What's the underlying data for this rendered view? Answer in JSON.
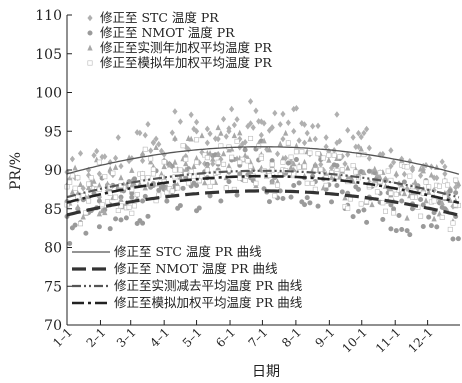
{
  "chart_data": {
    "type": "scatter",
    "title": "",
    "xlabel": "日期",
    "ylabel": "PR/%",
    "ylim": [
      70,
      110
    ],
    "yticks": [
      70,
      75,
      80,
      85,
      90,
      95,
      100,
      105,
      110
    ],
    "xlim": [
      1,
      365
    ],
    "x_ticks": [
      {
        "label": "1–1",
        "day": 1
      },
      {
        "label": "2–1",
        "day": 32
      },
      {
        "label": "3–1",
        "day": 60
      },
      {
        "label": "4–1",
        "day": 91
      },
      {
        "label": "5–1",
        "day": 121
      },
      {
        "label": "6–1",
        "day": 152
      },
      {
        "label": "7–1",
        "day": 182
      },
      {
        "label": "8–1",
        "day": 213
      },
      {
        "label": "9–1",
        "day": 244
      },
      {
        "label": "10–1",
        "day": 274
      },
      {
        "label": "11–1",
        "day": 305
      },
      {
        "label": "12–1",
        "day": 335
      }
    ],
    "legend_points_position": "top-left",
    "legend_lines_position": "bottom-left",
    "series": [
      {
        "name": "修正至 STC 温度 PR",
        "marker": "diamond",
        "color": "#b0b0b0",
        "points_every_10_days": [
          [
            1,
            88
          ],
          [
            11,
            89
          ],
          [
            21,
            90
          ],
          [
            31,
            89.5
          ],
          [
            41,
            91
          ],
          [
            51,
            90.5
          ],
          [
            61,
            91.5
          ],
          [
            71,
            92
          ],
          [
            81,
            93.5
          ],
          [
            91,
            92
          ],
          [
            101,
            94
          ],
          [
            111,
            93
          ],
          [
            121,
            95
          ],
          [
            131,
            93.5
          ],
          [
            141,
            94
          ],
          [
            151,
            95
          ],
          [
            161,
            94
          ],
          [
            171,
            96
          ],
          [
            181,
            94.5
          ],
          [
            191,
            95.5
          ],
          [
            201,
            94
          ],
          [
            211,
            95
          ],
          [
            221,
            93.5
          ],
          [
            231,
            94
          ],
          [
            241,
            93
          ],
          [
            251,
            93.5
          ],
          [
            261,
            92
          ],
          [
            271,
            93
          ],
          [
            281,
            91.5
          ],
          [
            291,
            92
          ],
          [
            301,
            90.5
          ],
          [
            311,
            91
          ],
          [
            321,
            90
          ],
          [
            331,
            90.5
          ],
          [
            341,
            89
          ],
          [
            351,
            89.5
          ],
          [
            361,
            88.5
          ]
        ]
      },
      {
        "name": "修正至 NMOT 温度 PR",
        "marker": "circle",
        "color": "#9a9a9a",
        "points_every_10_days": [
          [
            1,
            84
          ],
          [
            11,
            85
          ],
          [
            21,
            84.5
          ],
          [
            31,
            86
          ],
          [
            41,
            85.5
          ],
          [
            51,
            86.5
          ],
          [
            61,
            87
          ],
          [
            71,
            86
          ],
          [
            81,
            88
          ],
          [
            91,
            87.5
          ],
          [
            101,
            88
          ],
          [
            111,
            89
          ],
          [
            121,
            88
          ],
          [
            131,
            89
          ],
          [
            141,
            90
          ],
          [
            151,
            88.5
          ],
          [
            161,
            89.5
          ],
          [
            171,
            89
          ],
          [
            181,
            90
          ],
          [
            191,
            88.5
          ],
          [
            201,
            89.5
          ],
          [
            211,
            88
          ],
          [
            221,
            89
          ],
          [
            231,
            88.5
          ],
          [
            241,
            87.5
          ],
          [
            251,
            88
          ],
          [
            261,
            87
          ],
          [
            271,
            87.5
          ],
          [
            281,
            86.5
          ],
          [
            291,
            87
          ],
          [
            301,
            85.5
          ],
          [
            311,
            86
          ],
          [
            321,
            85
          ],
          [
            331,
            85.5
          ],
          [
            341,
            84.5
          ],
          [
            351,
            85
          ],
          [
            361,
            84
          ]
        ]
      },
      {
        "name": "修正至实测年加权平均温度 PR",
        "marker": "triangle",
        "color": "#a8a8a8",
        "points_every_10_days": [
          [
            1,
            86
          ],
          [
            11,
            87
          ],
          [
            21,
            86.5
          ],
          [
            31,
            88
          ],
          [
            41,
            87.5
          ],
          [
            51,
            89
          ],
          [
            61,
            88
          ],
          [
            71,
            89.5
          ],
          [
            81,
            90
          ],
          [
            91,
            89
          ],
          [
            101,
            91
          ],
          [
            111,
            90
          ],
          [
            121,
            91.5
          ],
          [
            131,
            90.5
          ],
          [
            141,
            92
          ],
          [
            151,
            90.5
          ],
          [
            161,
            91.5
          ],
          [
            171,
            91
          ],
          [
            181,
            92
          ],
          [
            191,
            90.5
          ],
          [
            201,
            91.5
          ],
          [
            211,
            90
          ],
          [
            221,
            91
          ],
          [
            231,
            90.5
          ],
          [
            241,
            89.5
          ],
          [
            251,
            90
          ],
          [
            261,
            89
          ],
          [
            271,
            89.5
          ],
          [
            281,
            88.5
          ],
          [
            291,
            89
          ],
          [
            301,
            87.5
          ],
          [
            311,
            88
          ],
          [
            321,
            87
          ],
          [
            331,
            87.5
          ],
          [
            341,
            86.5
          ],
          [
            351,
            87
          ],
          [
            361,
            86
          ]
        ]
      },
      {
        "name": "修正至模拟年加权平均温度 PR",
        "marker": "square",
        "color": "#b8b8b8",
        "points_every_10_days": [
          [
            1,
            85.5
          ],
          [
            11,
            86.5
          ],
          [
            21,
            86
          ],
          [
            31,
            87.5
          ],
          [
            41,
            87
          ],
          [
            51,
            88
          ],
          [
            61,
            87.5
          ],
          [
            71,
            89
          ],
          [
            81,
            89.5
          ],
          [
            91,
            88.5
          ],
          [
            101,
            90
          ],
          [
            111,
            89.5
          ],
          [
            121,
            91
          ],
          [
            131,
            90
          ],
          [
            141,
            91
          ],
          [
            151,
            90
          ],
          [
            161,
            91
          ],
          [
            171,
            90.5
          ],
          [
            181,
            91.5
          ],
          [
            191,
            90
          ],
          [
            201,
            91
          ],
          [
            211,
            89.5
          ],
          [
            221,
            90.5
          ],
          [
            231,
            90
          ],
          [
            241,
            89
          ],
          [
            251,
            89.5
          ],
          [
            261,
            88.5
          ],
          [
            271,
            89
          ],
          [
            281,
            88
          ],
          [
            291,
            88.5
          ],
          [
            301,
            87
          ],
          [
            311,
            87.5
          ],
          [
            321,
            86.5
          ],
          [
            331,
            87
          ],
          [
            341,
            86
          ],
          [
            351,
            86.5
          ],
          [
            361,
            85.5
          ]
        ]
      }
    ],
    "curves": [
      {
        "name": "修正至 STC 温度 PR 曲线",
        "style": "solid",
        "color": "#555555",
        "width": 1.3,
        "x": [
          1,
          61,
          121,
          182,
          244,
          305,
          365
        ],
        "y": [
          89.5,
          91.3,
          92.5,
          93.0,
          92.5,
          91.3,
          89.5
        ]
      },
      {
        "name": "修正至 NMOT 温度 PR 曲线",
        "style": "dash",
        "color": "#333333",
        "width": 3.2,
        "x": [
          1,
          61,
          121,
          182,
          244,
          305,
          365
        ],
        "y": [
          84.2,
          85.9,
          86.9,
          87.3,
          86.9,
          85.9,
          84.2
        ]
      },
      {
        "name": "修正至实测减去平均温度 PR 曲线",
        "style": "dashdotdot",
        "color": "#555555",
        "width": 2.2,
        "x": [
          1,
          61,
          121,
          182,
          244,
          305,
          365
        ],
        "y": [
          86.5,
          88.3,
          89.4,
          89.9,
          89.4,
          88.3,
          86.5
        ]
      },
      {
        "name": "修正至模拟加权平均温度 PR 曲线",
        "style": "dashdot",
        "color": "#222222",
        "width": 2.6,
        "x": [
          1,
          61,
          121,
          182,
          244,
          305,
          365
        ],
        "y": [
          85.8,
          87.6,
          88.7,
          89.2,
          88.7,
          87.6,
          85.8
        ]
      }
    ]
  }
}
